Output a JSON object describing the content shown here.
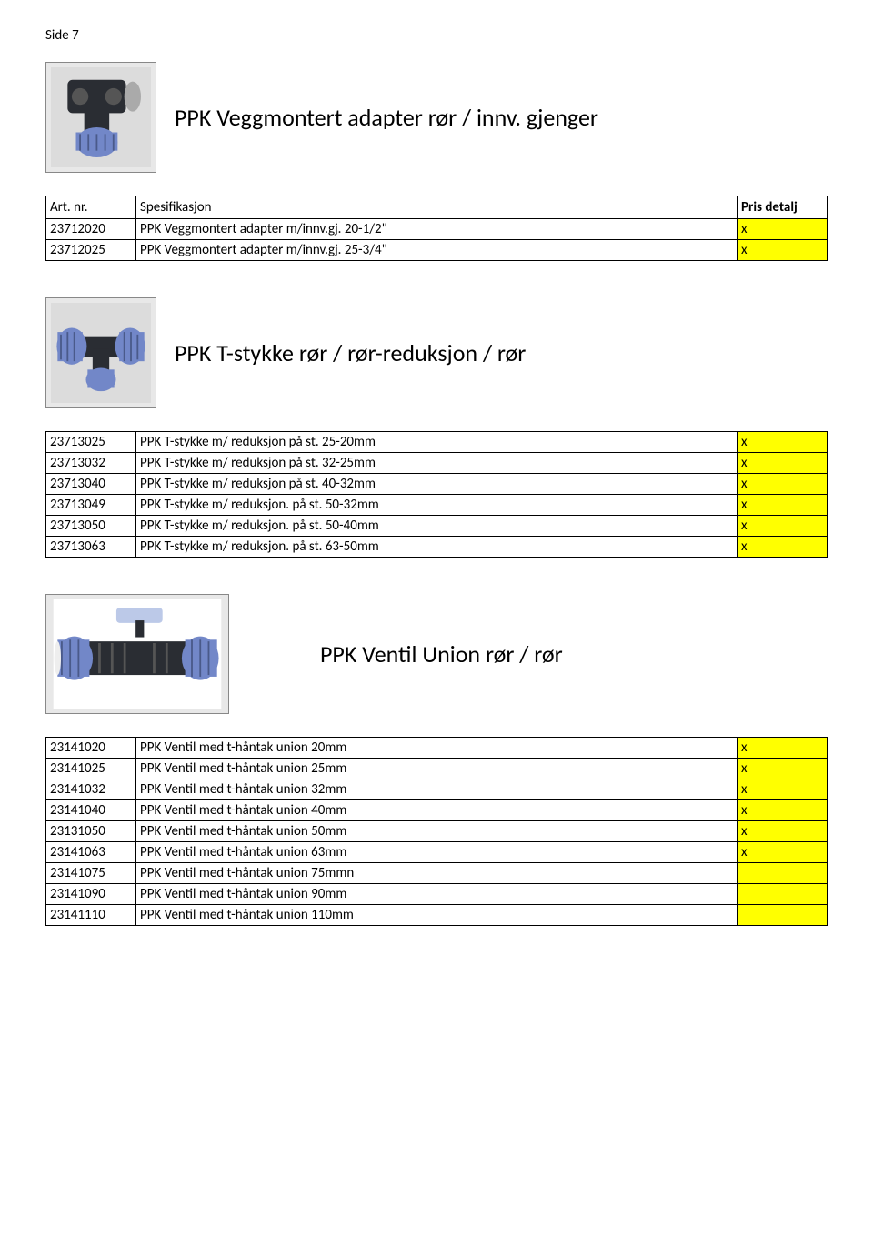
{
  "page_label": "Side 7",
  "header_labels": {
    "art": "Art. nr.",
    "spec": "Spesifikasjon",
    "pris": "Pris detalj"
  },
  "colors": {
    "highlight": "#ffff00",
    "border": "#000000",
    "bg": "#ffffff",
    "fitting_blue": "#7287c8",
    "fitting_dark": "#2a2d33",
    "handle_blue": "#bcc9e8"
  },
  "sections": [
    {
      "id": "s1",
      "title": "PPK   Veggmontert adapter rør / innv. gjenger",
      "image": "wall-adapter",
      "show_header": true,
      "title_right": false,
      "rows": [
        {
          "art": "23712020",
          "spec": "PPK Veggmontert adapter m/innv.gj. 20-1/2\"",
          "pris": "x",
          "hl": true
        },
        {
          "art": "23712025",
          "spec": "PPK Veggmontert adapter m/innv.gj. 25-3/4\"",
          "pris": "x",
          "hl": true
        }
      ]
    },
    {
      "id": "s2",
      "title": "PPK T-stykke rør / rør-reduksjon / rør",
      "image": "tee",
      "show_header": false,
      "title_right": false,
      "rows": [
        {
          "art": "23713025",
          "spec": "PPK T-stykke m/ reduksjon på st. 25-20mm",
          "pris": "x",
          "hl": true
        },
        {
          "art": "23713032",
          "spec": "PPK T-stykke m/ reduksjon på st. 32-25mm",
          "pris": "x",
          "hl": true
        },
        {
          "art": "23713040",
          "spec": "PPK T-stykke m/ reduksjon på st. 40-32mm",
          "pris": "x",
          "hl": true
        },
        {
          "art": "23713049",
          "spec": "PPK T-stykke m/ reduksjon. på st. 50-32mm",
          "pris": "x",
          "hl": true
        },
        {
          "art": "23713050",
          "spec": "PPK T-stykke m/ reduksjon. på st. 50-40mm",
          "pris": "x",
          "hl": true
        },
        {
          "art": "23713063",
          "spec": "PPK T-stykke m/ reduksjon. på st. 63-50mm",
          "pris": "x",
          "hl": true
        }
      ]
    },
    {
      "id": "s3",
      "title": "PPK Ventil Union rør / rør",
      "image": "valve",
      "show_header": false,
      "title_right": true,
      "rows": [
        {
          "art": "23141020",
          "spec": "PPK Ventil med t-håntak union 20mm",
          "pris": "x",
          "hl": true
        },
        {
          "art": "23141025",
          "spec": "PPK Ventil med t-håntak union 25mm",
          "pris": "x",
          "hl": true
        },
        {
          "art": "23141032",
          "spec": "PPK Ventil med t-håntak union 32mm",
          "pris": "x",
          "hl": true
        },
        {
          "art": "23141040",
          "spec": "PPK Ventil med t-håntak union 40mm",
          "pris": "x",
          "hl": true
        },
        {
          "art": "23131050",
          "spec": "PPK Ventil med t-håntak union 50mm",
          "pris": "x",
          "hl": true
        },
        {
          "art": "23141063",
          "spec": "PPK Ventil med t-håntak union 63mm",
          "pris": "x",
          "hl": true
        },
        {
          "art": "23141075",
          "spec": "PPK Ventil med t-håntak union 75mmn",
          "pris": "",
          "hl": true
        },
        {
          "art": "23141090",
          "spec": "PPK Ventil med t-håntak union 90mm",
          "pris": "",
          "hl": true
        },
        {
          "art": "23141110",
          "spec": "PPK Ventil med t-håntak union 110mm",
          "pris": "",
          "hl": true
        }
      ]
    }
  ]
}
